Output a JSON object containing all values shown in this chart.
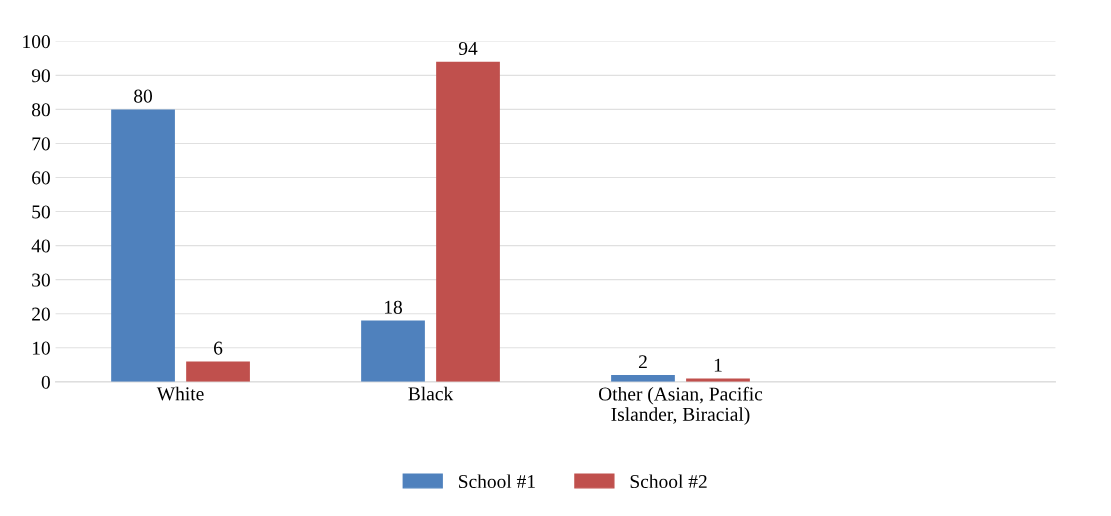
{
  "chart_data": {
    "type": "bar",
    "categories": [
      "White",
      "Black",
      "Other (Asian, Pacific\nIslander, Biracial)"
    ],
    "series": [
      {
        "name": "School #1",
        "color": "#4f81bd",
        "values": [
          80,
          18,
          2
        ]
      },
      {
        "name": "School #2",
        "color": "#c0504d",
        "values": [
          6,
          94,
          1
        ]
      }
    ],
    "ylim": [
      0,
      100
    ],
    "yticks": [
      0,
      10,
      20,
      30,
      40,
      50,
      60,
      70,
      80,
      90,
      100
    ],
    "grid": "y",
    "legend": "bottom",
    "data_labels": true
  }
}
